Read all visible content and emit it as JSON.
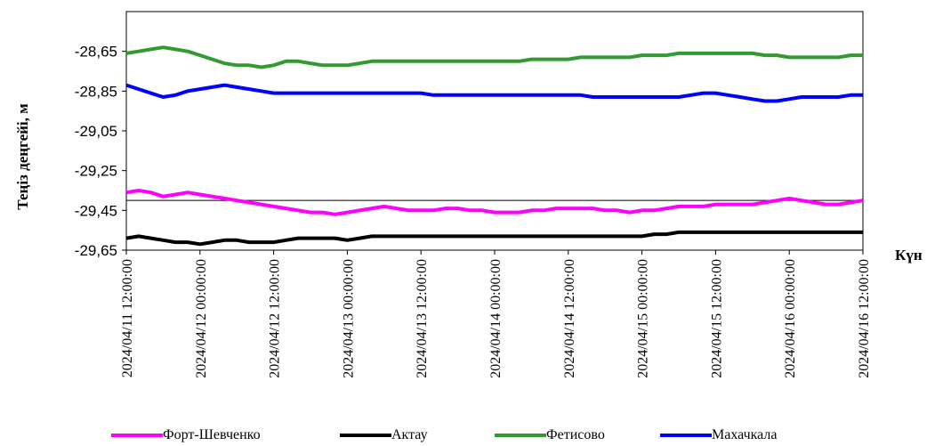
{
  "chart_data": {
    "type": "line",
    "title": "",
    "xlabel": "Күн",
    "ylabel": "Теңіз деңгейі, м",
    "ylim": [
      -29.65,
      -28.45
    ],
    "yticks": [
      "-28,65",
      "-28,85",
      "-29,05",
      "-29,25",
      "-29,45",
      "-29,65"
    ],
    "ytick_values": [
      -28.65,
      -28.85,
      -29.05,
      -29.25,
      -29.45,
      -29.65
    ],
    "xticks": [
      "2024/04/11 12:00:00",
      "2024/04/12 00:00:00",
      "2024/04/12 12:00:00",
      "2024/04/13 00:00:00",
      "2024/04/13 12:00:00",
      "2024/04/14 00:00:00",
      "2024/04/14 12:00:00",
      "2024/04/15 00:00:00",
      "2024/04/15 12:00:00",
      "2024/04/16 00:00:00",
      "2024/04/16 12:00:00"
    ],
    "x": [
      "2024/04/11 12:00",
      "2024/04/11 14:00",
      "2024/04/11 16:00",
      "2024/04/11 18:00",
      "2024/04/11 20:00",
      "2024/04/11 22:00",
      "2024/04/12 00:00",
      "2024/04/12 02:00",
      "2024/04/12 04:00",
      "2024/04/12 06:00",
      "2024/04/12 08:00",
      "2024/04/12 10:00",
      "2024/04/12 12:00",
      "2024/04/12 14:00",
      "2024/04/12 16:00",
      "2024/04/12 18:00",
      "2024/04/12 20:00",
      "2024/04/12 22:00",
      "2024/04/13 00:00",
      "2024/04/13 02:00",
      "2024/04/13 04:00",
      "2024/04/13 06:00",
      "2024/04/13 08:00",
      "2024/04/13 10:00",
      "2024/04/13 12:00",
      "2024/04/13 14:00",
      "2024/04/13 16:00",
      "2024/04/13 18:00",
      "2024/04/13 20:00",
      "2024/04/13 22:00",
      "2024/04/14 00:00",
      "2024/04/14 02:00",
      "2024/04/14 04:00",
      "2024/04/14 06:00",
      "2024/04/14 08:00",
      "2024/04/14 10:00",
      "2024/04/14 12:00",
      "2024/04/14 14:00",
      "2024/04/14 16:00",
      "2024/04/14 18:00",
      "2024/04/14 20:00",
      "2024/04/14 22:00",
      "2024/04/15 00:00",
      "2024/04/15 02:00",
      "2024/04/15 04:00",
      "2024/04/15 06:00",
      "2024/04/15 08:00",
      "2024/04/15 10:00",
      "2024/04/15 12:00",
      "2024/04/15 14:00",
      "2024/04/15 16:00",
      "2024/04/15 18:00",
      "2024/04/15 20:00",
      "2024/04/15 22:00",
      "2024/04/16 00:00",
      "2024/04/16 02:00",
      "2024/04/16 04:00",
      "2024/04/16 06:00",
      "2024/04/16 08:00",
      "2024/04/16 10:00",
      "2024/04/16 12:00"
    ],
    "series": [
      {
        "name": "Форт-Шевченко",
        "color": "#ff00ff",
        "values": [
          -29.36,
          -29.35,
          -29.36,
          -29.38,
          -29.37,
          -29.36,
          -29.37,
          -29.38,
          -29.39,
          -29.4,
          -29.41,
          -29.42,
          -29.43,
          -29.44,
          -29.45,
          -29.46,
          -29.46,
          -29.47,
          -29.46,
          -29.45,
          -29.44,
          -29.43,
          -29.44,
          -29.45,
          -29.45,
          -29.45,
          -29.44,
          -29.44,
          -29.45,
          -29.45,
          -29.46,
          -29.46,
          -29.46,
          -29.45,
          -29.45,
          -29.44,
          -29.44,
          -29.44,
          -29.44,
          -29.45,
          -29.45,
          -29.46,
          -29.45,
          -29.45,
          -29.44,
          -29.43,
          -29.43,
          -29.43,
          -29.42,
          -29.42,
          -29.42,
          -29.42,
          -29.41,
          -29.4,
          -29.39,
          -29.4,
          -29.41,
          -29.42,
          -29.42,
          -29.41,
          -29.4
        ]
      },
      {
        "name": "Актау",
        "color": "#000000",
        "values": [
          -29.59,
          -29.58,
          -29.59,
          -29.6,
          -29.61,
          -29.61,
          -29.62,
          -29.61,
          -29.6,
          -29.6,
          -29.61,
          -29.61,
          -29.61,
          -29.6,
          -29.59,
          -29.59,
          -29.59,
          -29.59,
          -29.6,
          -29.59,
          -29.58,
          -29.58,
          -29.58,
          -29.58,
          -29.58,
          -29.58,
          -29.58,
          -29.58,
          -29.58,
          -29.58,
          -29.58,
          -29.58,
          -29.58,
          -29.58,
          -29.58,
          -29.58,
          -29.58,
          -29.58,
          -29.58,
          -29.58,
          -29.58,
          -29.58,
          -29.58,
          -29.57,
          -29.57,
          -29.56,
          -29.56,
          -29.56,
          -29.56,
          -29.56,
          -29.56,
          -29.56,
          -29.56,
          -29.56,
          -29.56,
          -29.56,
          -29.56,
          -29.56,
          -29.56,
          -29.56,
          -29.56
        ]
      },
      {
        "name": "Фетисово",
        "color": "#339933",
        "values": [
          -28.66,
          -28.65,
          -28.64,
          -28.63,
          -28.64,
          -28.65,
          -28.67,
          -28.69,
          -28.71,
          -28.72,
          -28.72,
          -28.73,
          -28.72,
          -28.7,
          -28.7,
          -28.71,
          -28.72,
          -28.72,
          -28.72,
          -28.71,
          -28.7,
          -28.7,
          -28.7,
          -28.7,
          -28.7,
          -28.7,
          -28.7,
          -28.7,
          -28.7,
          -28.7,
          -28.7,
          -28.7,
          -28.7,
          -28.69,
          -28.69,
          -28.69,
          -28.69,
          -28.68,
          -28.68,
          -28.68,
          -28.68,
          -28.68,
          -28.67,
          -28.67,
          -28.67,
          -28.66,
          -28.66,
          -28.66,
          -28.66,
          -28.66,
          -28.66,
          -28.66,
          -28.67,
          -28.67,
          -28.68,
          -28.68,
          -28.68,
          -28.68,
          -28.68,
          -28.67,
          -28.67
        ]
      },
      {
        "name": "Махачкала",
        "color": "#0000ff",
        "values": [
          -28.82,
          -28.84,
          -28.86,
          -28.88,
          -28.87,
          -28.85,
          -28.84,
          -28.83,
          -28.82,
          -28.83,
          -28.84,
          -28.85,
          -28.86,
          -28.86,
          -28.86,
          -28.86,
          -28.86,
          -28.86,
          -28.86,
          -28.86,
          -28.86,
          -28.86,
          -28.86,
          -28.86,
          -28.86,
          -28.87,
          -28.87,
          -28.87,
          -28.87,
          -28.87,
          -28.87,
          -28.87,
          -28.87,
          -28.87,
          -28.87,
          -28.87,
          -28.87,
          -28.87,
          -28.88,
          -28.88,
          -28.88,
          -28.88,
          -28.88,
          -28.88,
          -28.88,
          -28.88,
          -28.87,
          -28.86,
          -28.86,
          -28.87,
          -28.88,
          -28.89,
          -28.9,
          -28.9,
          -28.89,
          -28.88,
          -28.88,
          -28.88,
          -28.88,
          -28.87,
          -28.87
        ]
      }
    ]
  }
}
